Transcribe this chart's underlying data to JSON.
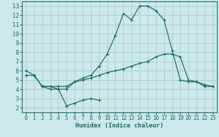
{
  "xlabel": "Humidex (Indice chaleur)",
  "xlim": [
    -0.5,
    23.5
  ],
  "ylim": [
    1.5,
    13.5
  ],
  "xticks": [
    0,
    1,
    2,
    3,
    4,
    5,
    6,
    7,
    8,
    9,
    10,
    11,
    12,
    13,
    14,
    15,
    16,
    17,
    18,
    19,
    20,
    21,
    22,
    23
  ],
  "yticks": [
    2,
    3,
    4,
    5,
    6,
    7,
    8,
    9,
    10,
    11,
    12,
    13
  ],
  "bg_color": "#cce8e8",
  "line_color": "#1a6b6b",
  "grid_color": "#aacece",
  "line1_x": [
    0,
    1,
    2,
    3,
    4,
    5,
    6,
    7,
    8,
    9,
    10,
    11,
    12,
    13,
    14,
    15,
    16,
    17,
    18,
    19,
    20,
    21,
    22,
    23
  ],
  "line1_y": [
    6.0,
    5.5,
    4.3,
    4.3,
    4.0,
    4.0,
    4.8,
    5.2,
    5.5,
    6.5,
    7.8,
    9.8,
    12.2,
    11.5,
    13.0,
    13.0,
    12.5,
    11.5,
    8.2,
    5.0,
    4.8,
    4.8,
    4.3,
    4.3
  ],
  "line2_x": [
    0,
    1,
    2,
    3,
    4,
    5,
    6,
    7,
    8,
    9,
    10,
    11,
    12,
    13,
    14,
    15,
    16,
    17,
    18,
    19,
    20,
    21,
    22,
    23
  ],
  "line2_y": [
    5.5,
    5.5,
    4.3,
    4.3,
    4.3,
    4.3,
    4.8,
    5.0,
    5.2,
    5.5,
    5.8,
    6.0,
    6.2,
    6.5,
    6.8,
    7.0,
    7.5,
    7.8,
    7.8,
    7.5,
    5.0,
    4.8,
    4.5,
    4.3
  ],
  "line3_x": [
    1,
    2,
    3,
    4,
    5,
    6,
    7,
    8,
    9
  ],
  "line3_y": [
    5.5,
    4.3,
    4.0,
    4.0,
    2.2,
    2.5,
    2.8,
    3.0,
    2.8
  ]
}
